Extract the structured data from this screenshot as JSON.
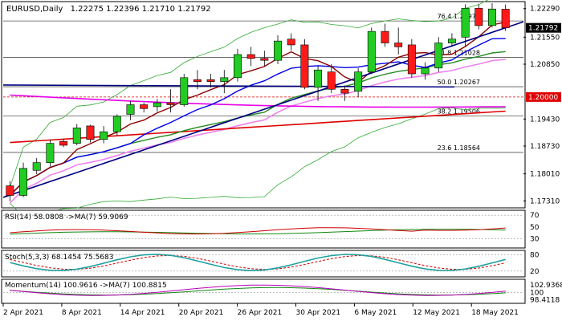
{
  "chart_data": {
    "type": "candlestick",
    "header": {
      "symbol": "EURUSD,Daily",
      "ohlc": "1.22275 1.22396 1.21710 1.21792"
    },
    "x_labels": [
      "2 Apr 2021",
      "8 Apr 2021",
      "14 Apr 2021",
      "20 Apr 2021",
      "26 Apr 2021",
      "30 Apr 2021",
      "6 May 2021",
      "12 May 2021",
      "18 May 2021"
    ],
    "price_axis": {
      "ticks": [
        "1.22290",
        "1.21550",
        "1.20850",
        "1.19430",
        "1.18730",
        "1.18010",
        "1.17310"
      ],
      "ylim": [
        1.1717,
        1.2243
      ],
      "current_price": "1.21792",
      "level_line": "1.20000"
    },
    "fibonacci": [
      {
        "label": "76.4 1.21970",
        "value": 1.2197
      },
      {
        "label": "61.8 1.21028",
        "value": 1.21028
      },
      {
        "label": "50.0 1.20267",
        "value": 1.20267
      },
      {
        "label": "38.2 1.19506",
        "value": 1.19506
      },
      {
        "label": "23.6 1.18564",
        "value": 1.18564
      }
    ],
    "candles": [
      [
        1.177,
        1.1782,
        1.173,
        1.1745
      ],
      [
        1.1745,
        1.183,
        1.174,
        1.1815
      ],
      [
        1.181,
        1.1842,
        1.18,
        1.183
      ],
      [
        1.183,
        1.189,
        1.182,
        1.188
      ],
      [
        1.1885,
        1.1892,
        1.187,
        1.1875
      ],
      [
        1.188,
        1.193,
        1.1875,
        1.192
      ],
      [
        1.1925,
        1.1928,
        1.1882,
        1.189
      ],
      [
        1.189,
        1.1925,
        1.188,
        1.191
      ],
      [
        1.191,
        1.1955,
        1.19,
        1.195
      ],
      [
        1.1955,
        1.199,
        1.194,
        1.198
      ],
      [
        1.198,
        1.1985,
        1.196,
        1.197
      ],
      [
        1.1975,
        1.1995,
        1.1962,
        1.1985
      ],
      [
        1.1985,
        1.202,
        1.196,
        1.198
      ],
      [
        1.198,
        1.206,
        1.1975,
        1.205
      ],
      [
        1.2045,
        1.207,
        1.202,
        1.204
      ],
      [
        1.2045,
        1.206,
        1.2025,
        1.204
      ],
      [
        1.204,
        1.207,
        1.201,
        1.205
      ],
      [
        1.205,
        1.2125,
        1.204,
        1.211
      ],
      [
        1.211,
        1.213,
        1.208,
        1.21
      ],
      [
        1.21,
        1.212,
        1.208,
        1.2095
      ],
      [
        1.2095,
        1.216,
        1.2085,
        1.2145
      ],
      [
        1.215,
        1.2165,
        1.212,
        1.2135
      ],
      [
        1.2135,
        1.215,
        1.202,
        1.2025
      ],
      [
        1.2025,
        1.208,
        1.199,
        1.207
      ],
      [
        1.2065,
        1.2085,
        1.201,
        1.202
      ],
      [
        1.202,
        1.203,
        1.199,
        1.201
      ],
      [
        1.2015,
        1.2075,
        1.2,
        1.2065
      ],
      [
        1.2065,
        1.218,
        1.206,
        1.217
      ],
      [
        1.217,
        1.219,
        1.213,
        1.214
      ],
      [
        1.214,
        1.218,
        1.211,
        1.213
      ],
      [
        1.2135,
        1.215,
        1.205,
        1.206
      ],
      [
        1.206,
        1.209,
        1.2045,
        1.2075
      ],
      [
        1.2075,
        1.2155,
        1.2065,
        1.214
      ],
      [
        1.214,
        1.2165,
        1.213,
        1.215
      ],
      [
        1.2155,
        1.224,
        1.213,
        1.223
      ],
      [
        1.223,
        1.224,
        1.2175,
        1.2185
      ],
      [
        1.2185,
        1.2243,
        1.218,
        1.2228
      ],
      [
        1.22275,
        1.22396,
        1.2171,
        1.21792
      ]
    ],
    "indicators": [
      {
        "label": "RSI(14) 58.0808 ->MA(7) 59.9069",
        "ticks": [
          "70",
          "50",
          "30"
        ]
      },
      {
        "label": "Stoch(5,3,3) 68.1454 75.5683",
        "ticks": [
          "80",
          "20"
        ]
      },
      {
        "label": "Momentum(14) 100.9616 ->MA(7) 100.8815",
        "ticks": [
          "102.9368",
          "100",
          "98.4118"
        ]
      }
    ]
  },
  "colors": {
    "bull": "#22cc22",
    "bear": "#ff1a1a",
    "sma_fast": "#8b0000",
    "sma_mid": "#0000ee",
    "sma_slow": "#228b22",
    "trendline": "#000080",
    "magenta": "#e600e6",
    "red_ma": "#dd0000",
    "pink_ma": "#ee82ee",
    "band": "#33aa33"
  }
}
